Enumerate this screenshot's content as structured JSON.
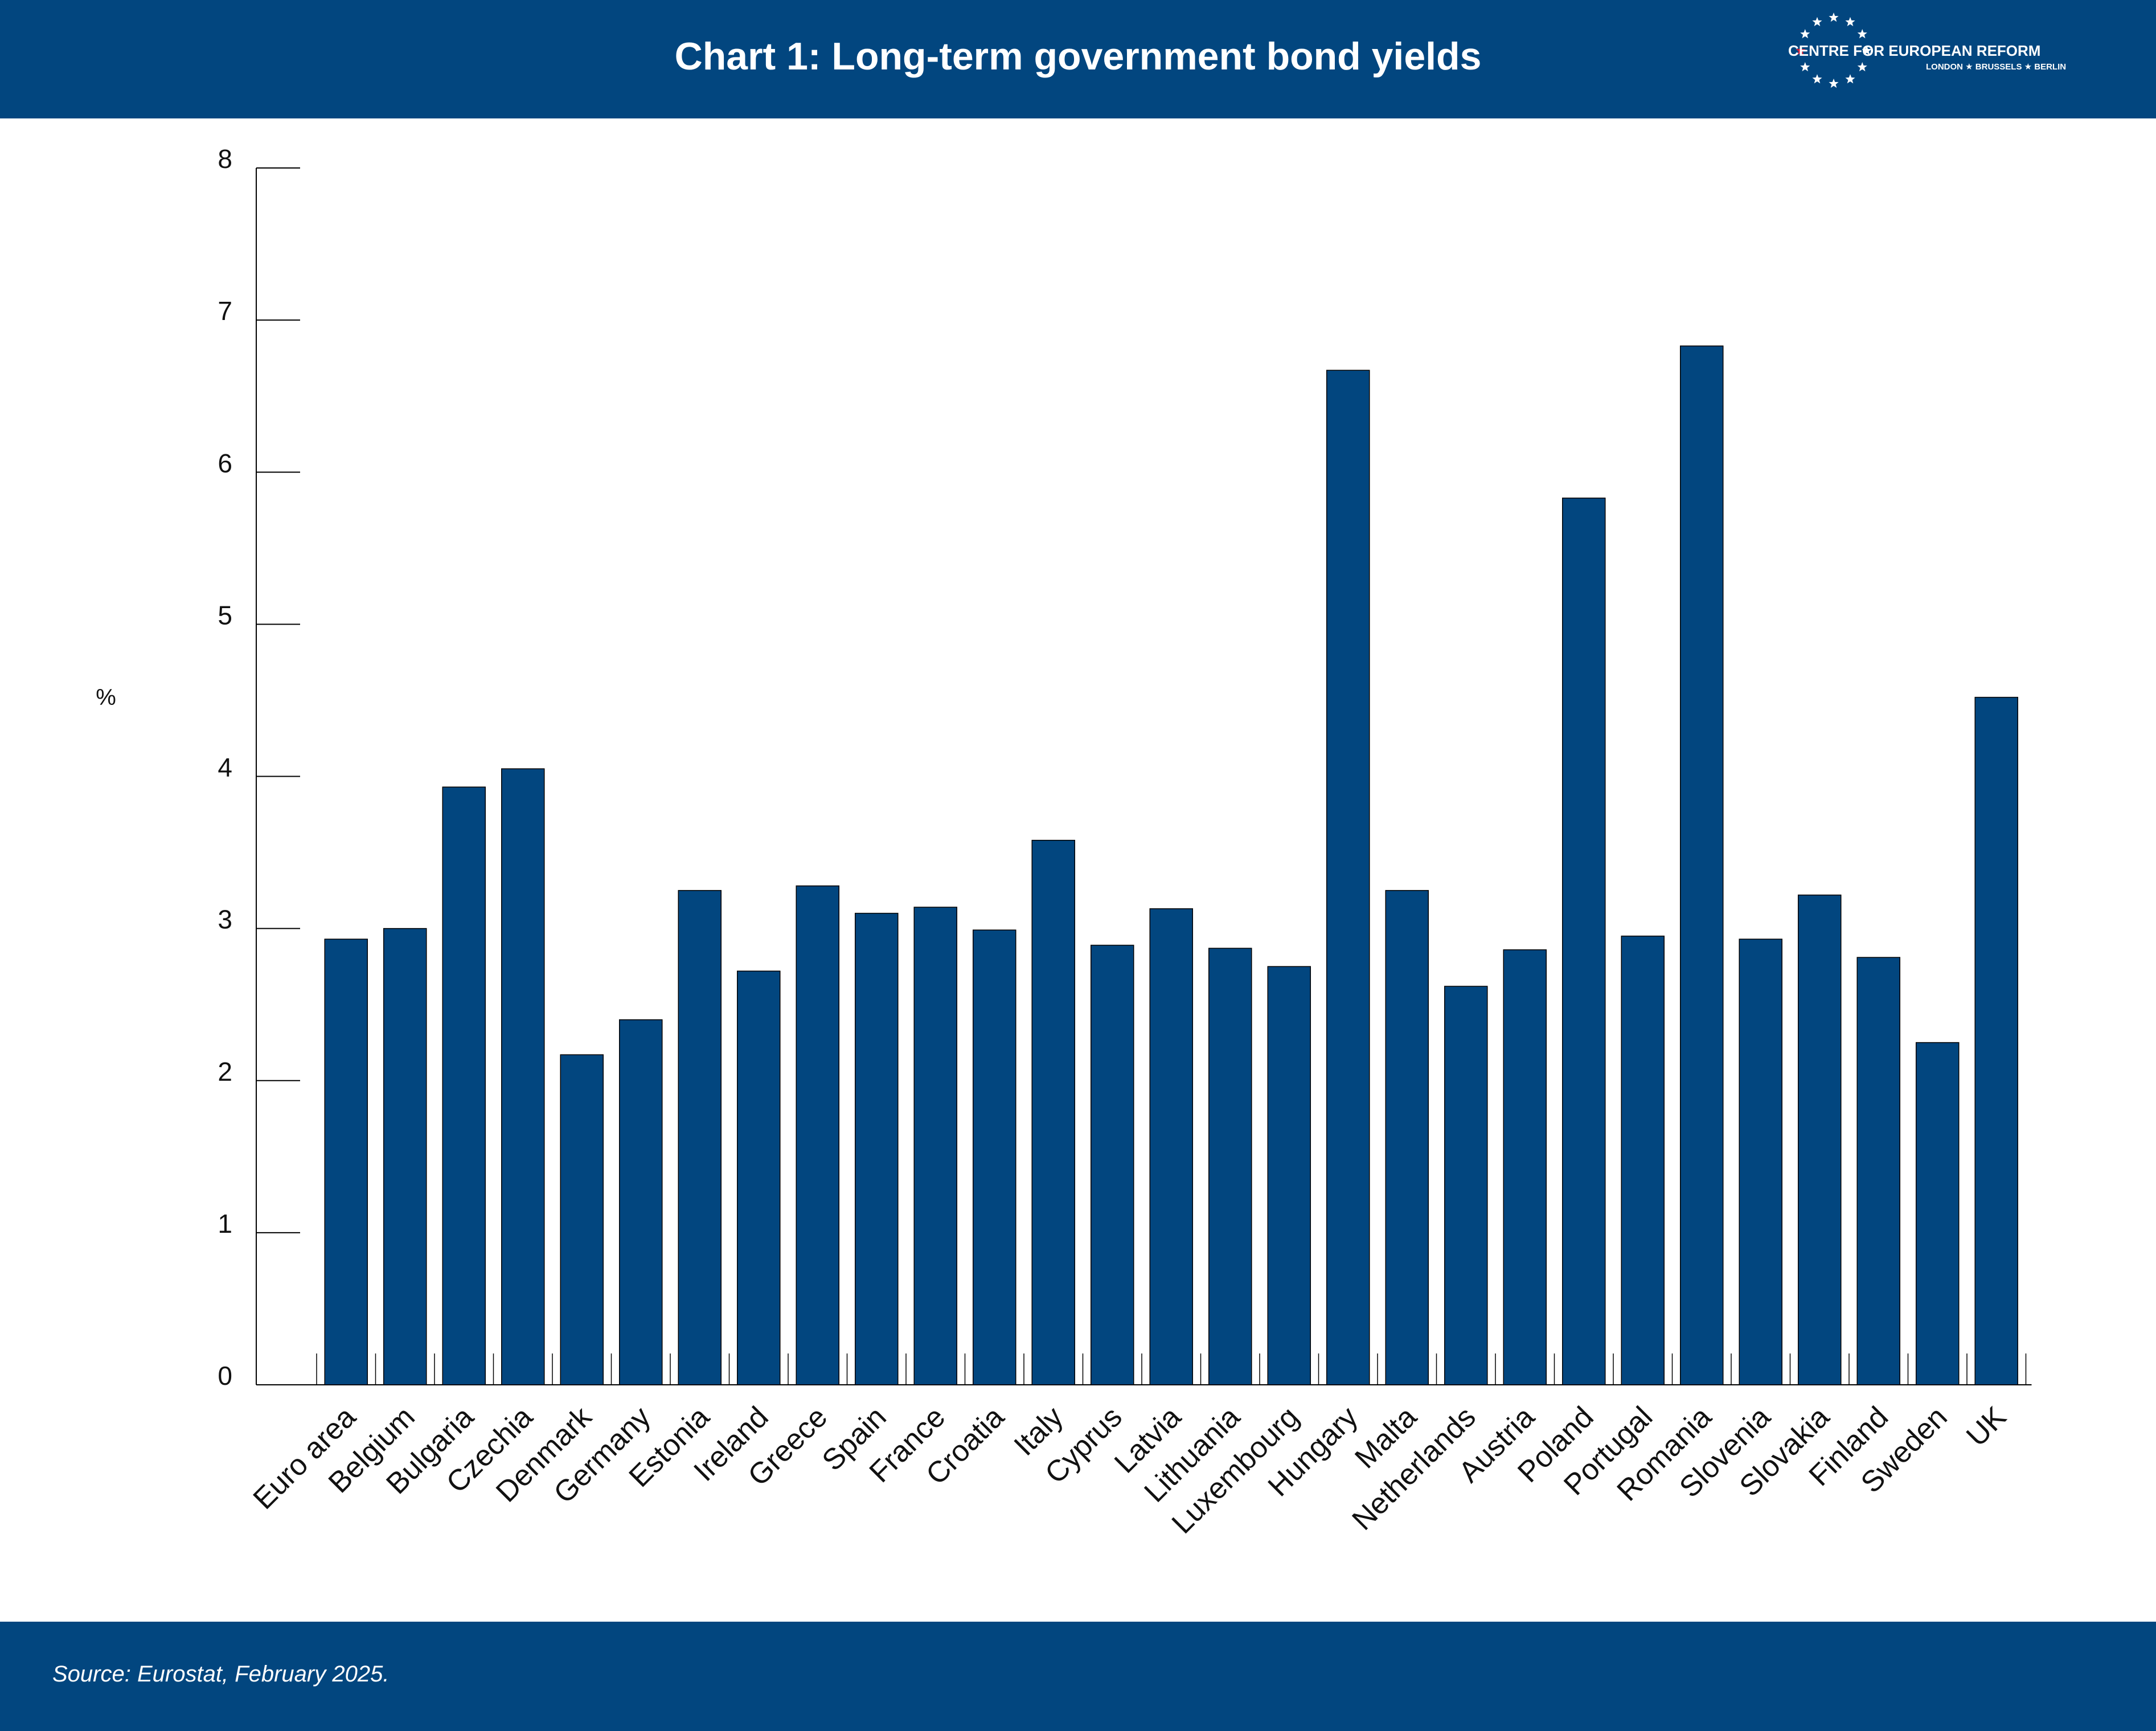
{
  "header": {
    "title": "Chart 1: Long-term government bond yields",
    "logo": {
      "name": "CENTRE FOR EUROPEAN REFORM",
      "cities": "LONDON ★ BRUSSELS ★ BERLIN",
      "star_color": "#ffffff",
      "accent_star_color": "#d6213b"
    }
  },
  "footer": {
    "source": "Source: Eurostat, February 2025."
  },
  "colors": {
    "brand": "#02467f",
    "bar": "#02467f",
    "axis": "#000000"
  },
  "chart_data": {
    "type": "bar",
    "title": "Chart 1: Long-term government bond yields",
    "xlabel": "",
    "ylabel": "%",
    "ylim": [
      0,
      8
    ],
    "yticks": [
      "0",
      "1",
      "2",
      "3",
      "4",
      "5",
      "6",
      "7",
      "8"
    ],
    "grid": false,
    "legend": "none",
    "categories": [
      "Euro area",
      "Belgium",
      "Bulgaria",
      "Czechia",
      "Denmark",
      "Germany",
      "Estonia",
      "Ireland",
      "Greece",
      "Spain",
      "France",
      "Croatia",
      "Italy",
      "Cyprus",
      "Latvia",
      "Lithuania",
      "Luxembourg",
      "Hungary",
      "Malta",
      "Netherlands",
      "Austria",
      "Poland",
      "Portugal",
      "Romania",
      "Slovenia",
      "Slovakia",
      "Finland",
      "Sweden",
      "UK"
    ],
    "values": [
      2.93,
      3.0,
      3.93,
      4.05,
      2.17,
      2.4,
      3.25,
      2.72,
      3.28,
      3.1,
      3.14,
      2.99,
      3.58,
      2.89,
      3.13,
      2.87,
      2.75,
      6.67,
      3.25,
      2.62,
      2.86,
      5.83,
      2.95,
      6.83,
      2.93,
      3.22,
      2.81,
      2.25,
      4.52
    ]
  }
}
